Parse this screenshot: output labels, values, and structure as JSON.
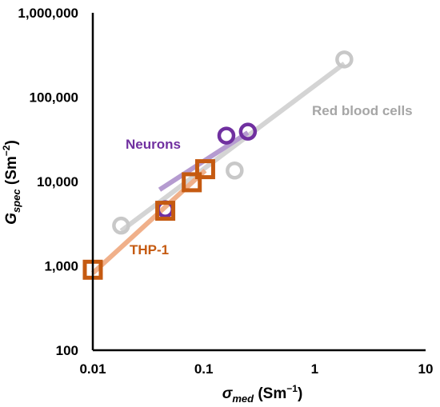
{
  "chart_data": {
    "type": "scatter",
    "xscale": "log",
    "yscale": "log",
    "xlim": [
      0.01,
      10
    ],
    "ylim": [
      100,
      1000000
    ],
    "x_ticks": [
      0.01,
      0.1,
      1,
      10
    ],
    "x_tick_labels": [
      "0.01",
      "0.1",
      "1",
      "10"
    ],
    "y_ticks": [
      100,
      1000,
      10000,
      100000,
      1000000
    ],
    "y_tick_labels": [
      "100",
      "1,000",
      "10,000",
      "100,000",
      "1,000,000"
    ],
    "xlabel": {
      "main": "σ",
      "sub": "med",
      "rest": " (Sm",
      "sup": "−1",
      "end": ")"
    },
    "ylabel": {
      "main": "G",
      "sub": "spec",
      "rest": " (Sm",
      "sup": "−2",
      "end": ")"
    },
    "grid": false,
    "series": [
      {
        "name": "Red blood cells",
        "marker": "circle",
        "color": "#c8c8c8",
        "trend_color": "#d4d4d4",
        "points": [
          [
            0.018,
            3000
          ],
          [
            0.19,
            13500
          ],
          [
            1.85,
            280000
          ]
        ],
        "trend": [
          [
            0.018,
            2600
          ],
          [
            1.85,
            250000
          ]
        ]
      },
      {
        "name": "Neurons",
        "marker": "circle",
        "color": "#7030a0",
        "trend_color": "#b59bd0",
        "points": [
          [
            0.045,
            4700
          ],
          [
            0.16,
            35000
          ],
          [
            0.25,
            39000
          ]
        ],
        "trend": [
          [
            0.04,
            8000
          ],
          [
            0.25,
            38000
          ]
        ]
      },
      {
        "name": "THP-1",
        "marker": "square",
        "color": "#c55a11",
        "trend_color": "#f0b08a",
        "points": [
          [
            0.01,
            900
          ],
          [
            0.045,
            4500
          ],
          [
            0.078,
            9800
          ],
          [
            0.103,
            14000
          ]
        ],
        "trend": [
          [
            0.01,
            820
          ],
          [
            0.103,
            13500
          ]
        ]
      }
    ],
    "colors": {
      "axis": "#000000",
      "rbc_label": "#a6a6a6",
      "neuron_label": "#7030a0",
      "thp_label": "#c55a11"
    }
  }
}
